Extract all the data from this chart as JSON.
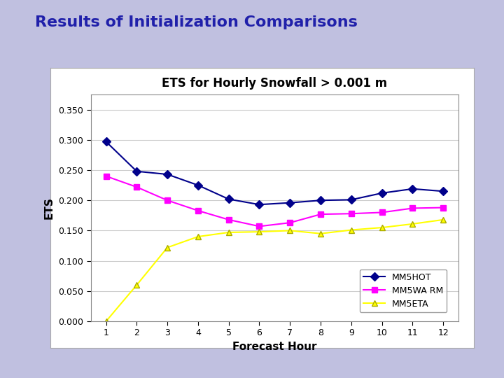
{
  "title": "Results of Initialization Comparisons",
  "chart_title": "ETS for Hourly Snowfall > 0.001 m",
  "xlabel": "Forecast Hour",
  "ylabel": "ETS",
  "x": [
    1,
    2,
    3,
    4,
    5,
    6,
    7,
    8,
    9,
    10,
    11,
    12
  ],
  "mm5hot": [
    0.297,
    0.248,
    0.243,
    0.225,
    0.202,
    0.193,
    0.196,
    0.2,
    0.201,
    0.212,
    0.219,
    0.215
  ],
  "mm5warm": [
    0.24,
    0.222,
    0.2,
    0.183,
    0.168,
    0.157,
    0.163,
    0.177,
    0.178,
    0.18,
    0.187,
    0.188
  ],
  "mm5eta": [
    0.0,
    0.06,
    0.122,
    0.14,
    0.147,
    0.148,
    0.15,
    0.145,
    0.151,
    0.155,
    0.161,
    0.168
  ],
  "color_hot": "#00008B",
  "color_warm": "#FF00FF",
  "color_eta": "#FFFF00",
  "color_eta_edge": "#AAAA00",
  "ylim": [
    0.0,
    0.375
  ],
  "yticks": [
    0.0,
    0.05,
    0.1,
    0.15,
    0.2,
    0.25,
    0.3,
    0.35
  ],
  "background_page": "#C0C0E0",
  "background_plot": "#FFFFFF",
  "title_color": "#2020AA",
  "title_fontsize": 16,
  "chart_title_fontsize": 12,
  "legend_label_warm": "MM5WA RM"
}
